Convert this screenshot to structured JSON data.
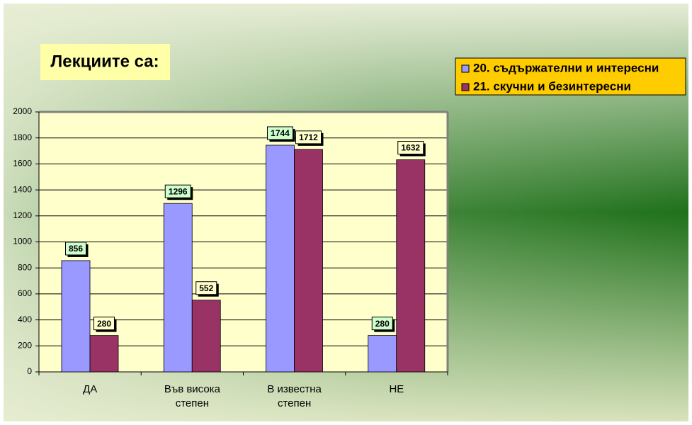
{
  "chart_data": {
    "type": "bar",
    "title": "Лекциите са:",
    "categories": [
      "ДА",
      "Във висока степен",
      "В известна степен",
      "НЕ"
    ],
    "series": [
      {
        "name": "20. съдържателни и интересни",
        "color": "#9999ff",
        "values": [
          856,
          1296,
          1744,
          280
        ]
      },
      {
        "name": "21. скучни и безинтересни",
        "color": "#993366",
        "values": [
          280,
          552,
          1712,
          1632
        ]
      }
    ],
    "ylim": [
      0,
      2000
    ],
    "yticks": [
      0,
      200,
      400,
      600,
      800,
      1000,
      1200,
      1400,
      1600,
      1800,
      2000
    ],
    "grid": true
  }
}
